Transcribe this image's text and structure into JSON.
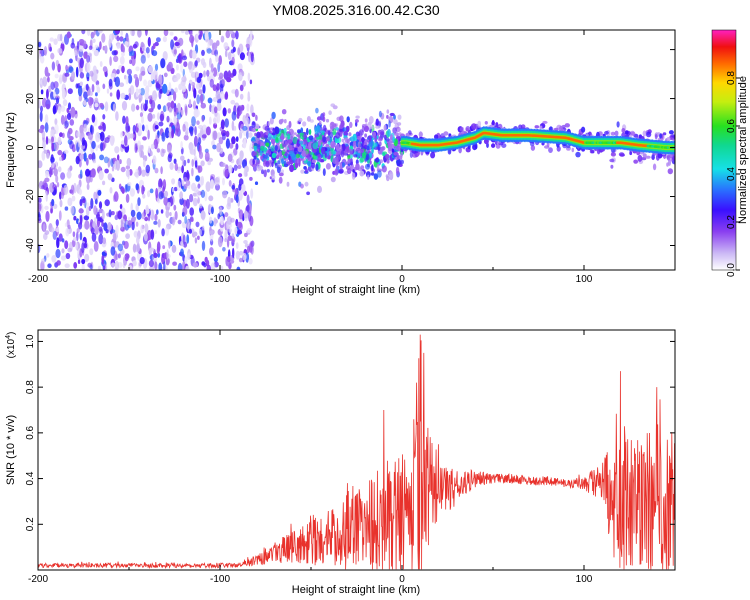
{
  "title": "YM08.2025.316.00.42.C30",
  "chart_data": [
    {
      "type": "heatmap",
      "name": "spectrogram",
      "xlabel": "Height of straight line (km)",
      "ylabel": "Frequency (Hz)",
      "xlim": [
        -200,
        150
      ],
      "ylim": [
        -50,
        48
      ],
      "xticks": [
        -200,
        -100,
        0,
        100
      ],
      "yticks": [
        -40,
        -20,
        0,
        20,
        40
      ],
      "colorbar": {
        "label": "Normalized spectral amplitude",
        "range": [
          0,
          1
        ],
        "ticks": [
          0.0,
          0.2,
          0.4,
          0.6,
          0.8
        ]
      },
      "regions": [
        {
          "x": [
            -200,
            -82
          ],
          "freq_center": 0,
          "freq_spread": 48,
          "amplitude": "low, noise"
        },
        {
          "x": [
            -82,
            0
          ],
          "freq_center": 0,
          "freq_spread": 12,
          "amplitude": "medium"
        },
        {
          "x": [
            0,
            150
          ],
          "freq_center": 3,
          "freq_spread": 3,
          "amplitude": "high"
        }
      ],
      "ridge": [
        [
          2,
          2
        ],
        [
          10,
          1
        ],
        [
          20,
          1
        ],
        [
          30,
          2
        ],
        [
          40,
          4
        ],
        [
          45,
          6
        ],
        [
          55,
          5
        ],
        [
          70,
          5
        ],
        [
          90,
          4
        ],
        [
          100,
          2
        ],
        [
          110,
          2
        ],
        [
          120,
          2
        ],
        [
          130,
          1
        ],
        [
          145,
          0
        ]
      ]
    },
    {
      "type": "line",
      "name": "snr",
      "xlabel": "Height of straight line (km)",
      "ylabel": "SNR (10 * v/v)",
      "yscale_label": "(x10",
      "yscale_exponent": "4",
      "xlim": [
        -200,
        150
      ],
      "ylim": [
        0,
        1.05
      ],
      "xticks": [
        -200,
        -100,
        0,
        100
      ],
      "yticks": [
        0.2,
        0.4,
        0.6,
        0.8,
        1.0
      ],
      "color": "#e8322c",
      "series_envelope": {
        "x": [
          -200,
          -150,
          -90,
          -80,
          -70,
          -60,
          -50,
          -40,
          -30,
          -20,
          -10,
          0,
          5,
          10,
          15,
          20,
          30,
          40,
          45,
          50,
          60,
          70,
          80,
          90,
          100,
          110,
          115,
          120,
          130,
          140,
          150
        ],
        "mean": [
          0.02,
          0.02,
          0.02,
          0.05,
          0.08,
          0.1,
          0.12,
          0.14,
          0.18,
          0.2,
          0.22,
          0.24,
          0.3,
          0.32,
          0.3,
          0.34,
          0.36,
          0.4,
          0.4,
          0.4,
          0.4,
          0.39,
          0.39,
          0.38,
          0.38,
          0.38,
          0.3,
          0.3,
          0.3,
          0.3,
          0.3
        ],
        "amp": [
          0.01,
          0.01,
          0.01,
          0.03,
          0.05,
          0.07,
          0.1,
          0.12,
          0.18,
          0.2,
          0.25,
          0.3,
          0.3,
          0.5,
          0.2,
          0.12,
          0.08,
          0.04,
          0.03,
          0.02,
          0.02,
          0.02,
          0.02,
          0.02,
          0.03,
          0.1,
          0.25,
          0.3,
          0.3,
          0.35,
          0.35
        ]
      },
      "peaks": [
        [
          -30,
          0.38
        ],
        [
          -10,
          0.7
        ],
        [
          8,
          0.82
        ],
        [
          10,
          1.03
        ],
        [
          12,
          0.95
        ],
        [
          20,
          0.55
        ],
        [
          120,
          0.87
        ],
        [
          140,
          0.8
        ]
      ]
    }
  ]
}
